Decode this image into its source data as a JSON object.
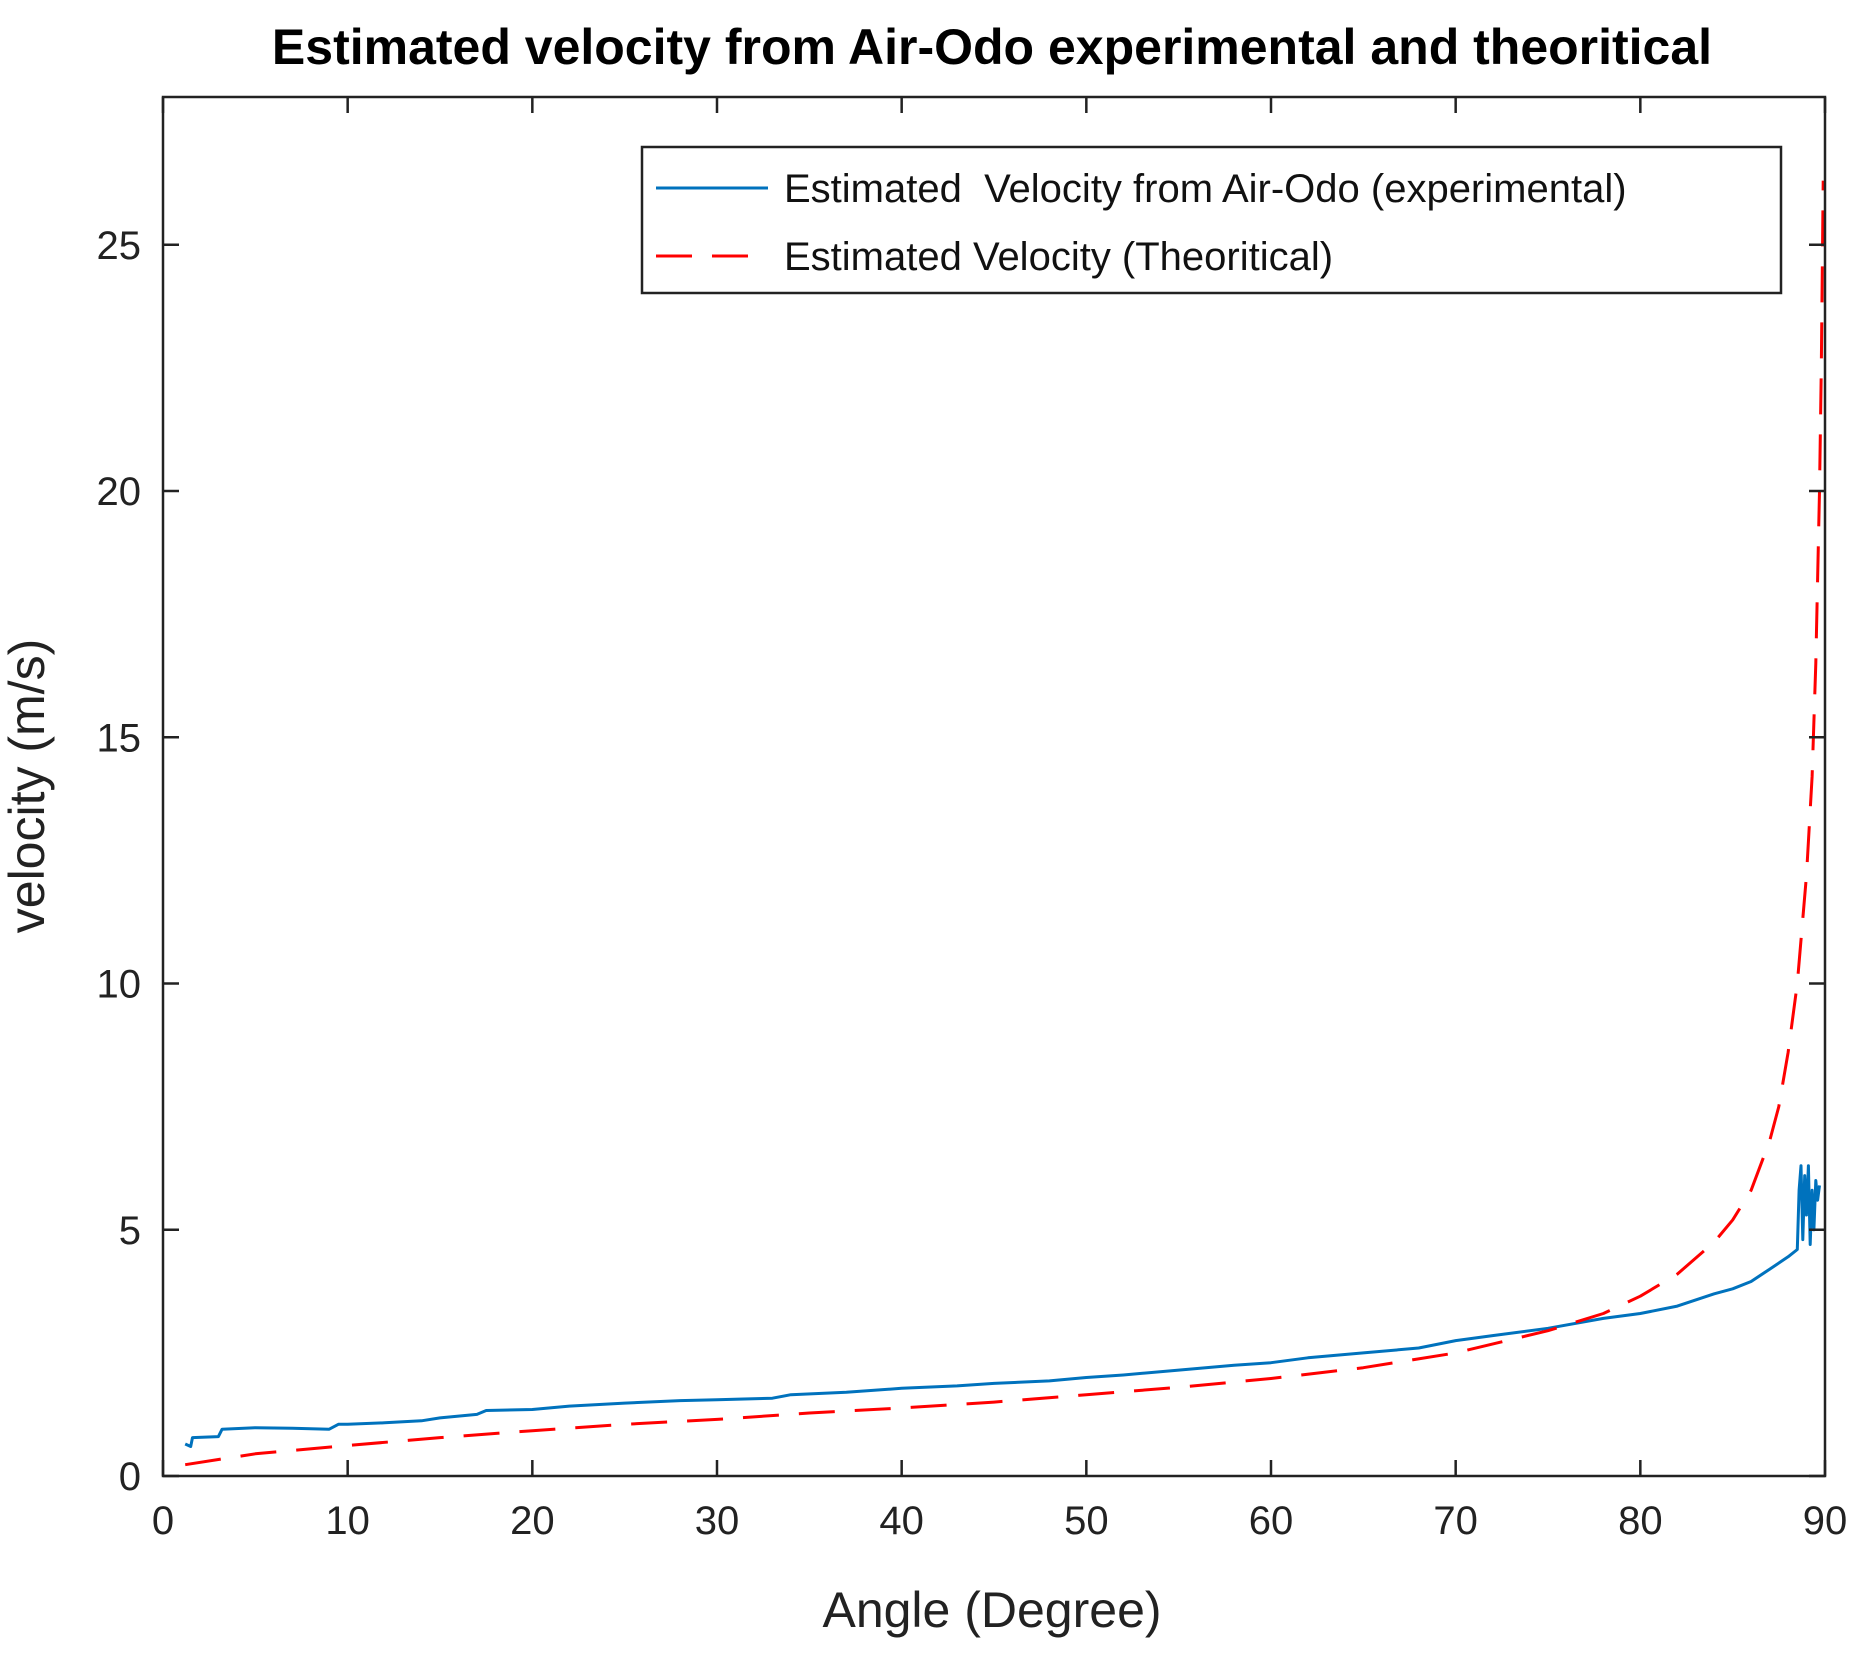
{
  "chart_data": {
    "type": "line",
    "title": "Estimated velocity from Air-Odo experimental and theoritical",
    "xlabel": "Angle (Degree)",
    "ylabel": "velocity (m/s)",
    "xlim": [
      0,
      90
    ],
    "ylim": [
      0,
      28
    ],
    "xticks": [
      0,
      10,
      20,
      30,
      40,
      50,
      60,
      70,
      80,
      90
    ],
    "yticks": [
      0,
      5,
      10,
      15,
      20,
      25
    ],
    "grid": false,
    "legend_position": "top-right",
    "series": [
      {
        "name": "Estimated  Velocity from Air-Odo (experimental)",
        "style": "solid",
        "color": "#0072bd",
        "x": [
          1.2,
          1.5,
          1.6,
          3,
          3.2,
          5,
          7,
          9,
          9.5,
          10,
          12,
          14,
          15,
          17,
          17.5,
          20,
          22,
          25,
          28,
          30,
          33,
          34,
          37,
          40,
          43,
          45,
          48,
          50,
          52,
          55,
          58,
          60,
          62,
          65,
          68,
          70,
          72,
          75,
          78,
          80,
          82,
          84,
          85,
          86,
          87,
          88,
          88.5,
          88.6,
          88.7,
          88.8,
          88.9,
          89.0,
          89.1,
          89.2,
          89.3,
          89.4,
          89.5,
          89.6,
          89.7
        ],
        "y": [
          0.65,
          0.6,
          0.78,
          0.8,
          0.95,
          0.98,
          0.97,
          0.95,
          1.05,
          1.05,
          1.08,
          1.12,
          1.18,
          1.25,
          1.33,
          1.35,
          1.42,
          1.48,
          1.53,
          1.55,
          1.58,
          1.65,
          1.7,
          1.78,
          1.83,
          1.88,
          1.93,
          2.0,
          2.05,
          2.15,
          2.25,
          2.3,
          2.4,
          2.5,
          2.6,
          2.75,
          2.85,
          3.0,
          3.2,
          3.3,
          3.45,
          3.7,
          3.8,
          3.95,
          4.2,
          4.45,
          4.6,
          5.8,
          6.3,
          4.8,
          6.1,
          5.3,
          6.3,
          4.7,
          5.8,
          5.0,
          6.0,
          5.6,
          5.9
        ]
      },
      {
        "name": "Estimated Velocity (Theoritical)",
        "style": "dashed",
        "color": "#ff0000",
        "x": [
          1.2,
          5,
          10,
          15,
          20,
          25,
          30,
          35,
          40,
          45,
          50,
          55,
          60,
          65,
          70,
          75,
          78,
          80,
          82,
          84,
          85,
          86,
          87,
          87.5,
          88,
          88.5,
          89,
          89.3,
          89.5,
          89.7,
          89.8,
          89.9
        ],
        "y": [
          0.23,
          0.45,
          0.62,
          0.78,
          0.92,
          1.05,
          1.15,
          1.28,
          1.38,
          1.5,
          1.65,
          1.8,
          1.98,
          2.2,
          2.5,
          2.95,
          3.3,
          3.65,
          4.1,
          4.75,
          5.2,
          5.8,
          6.8,
          7.5,
          8.6,
          10.0,
          12.2,
          14.2,
          16.5,
          20.0,
          22.5,
          26.3
        ]
      }
    ]
  }
}
